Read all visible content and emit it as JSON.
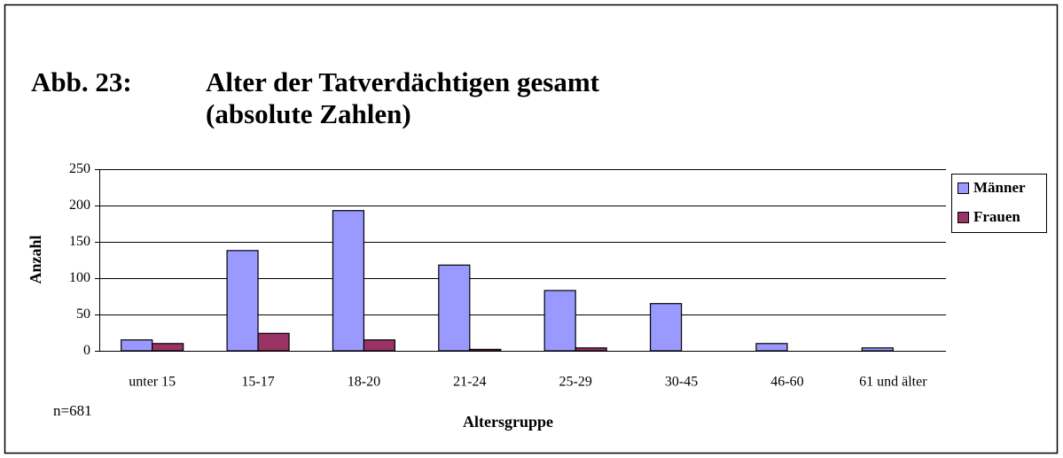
{
  "chart_data": {
    "type": "bar",
    "figure_label": "Abb. 23:",
    "title": "Alter der Tatverdächtigen gesamt",
    "subtitle": "(absolute Zahlen)",
    "annotation": "n=681",
    "x_label": "Altersgruppe",
    "y_label": "Anzahl",
    "categories": [
      "unter 15",
      "15-17",
      "18-20",
      "21-24",
      "25-29",
      "30-45",
      "46-60",
      "61 und älter"
    ],
    "series": [
      {
        "name": "Männer",
        "color": "#9999ff",
        "values": [
          15,
          138,
          193,
          118,
          83,
          65,
          10,
          4
        ]
      },
      {
        "name": "Frauen",
        "color": "#993366",
        "values": [
          10,
          24,
          15,
          2,
          4,
          0,
          0,
          0
        ]
      }
    ],
    "ylim": [
      0,
      250
    ],
    "yticks": [
      0,
      50,
      100,
      150,
      200,
      250
    ],
    "grid": true,
    "legend": "right"
  }
}
